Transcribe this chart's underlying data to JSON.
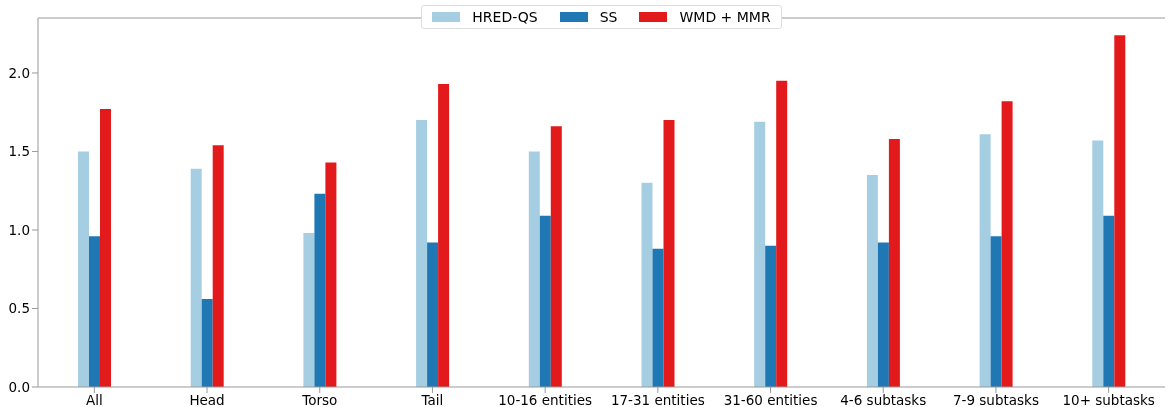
{
  "chart_data": {
    "type": "bar",
    "categories": [
      "All",
      "Head",
      "Torso",
      "Tail",
      "10-16 entities",
      "17-31 entities",
      "31-60 entities",
      "4-6 subtasks",
      "7-9 subtasks",
      "10+ subtasks"
    ],
    "series": [
      {
        "name": "HRED-QS",
        "color": "#a6cee3",
        "values": [
          1.5,
          1.39,
          0.98,
          1.7,
          1.5,
          1.3,
          1.69,
          1.35,
          1.61,
          1.57
        ]
      },
      {
        "name": "SS",
        "color": "#1f78b4",
        "values": [
          0.96,
          0.56,
          1.23,
          0.92,
          1.09,
          0.88,
          0.9,
          0.92,
          0.96,
          1.09
        ]
      },
      {
        "name": "WMD + MMR",
        "color": "#e31a1c",
        "values": [
          1.77,
          1.54,
          1.43,
          1.93,
          1.66,
          1.7,
          1.95,
          1.58,
          1.82,
          2.24
        ]
      }
    ],
    "ylim": [
      0,
      2.35
    ],
    "yticks": [
      {
        "value": 0,
        "label": "0.0"
      },
      0.5,
      {
        "value": 1,
        "label": "1.0"
      },
      1.5,
      {
        "value": 2,
        "label": "2.0"
      }
    ],
    "grid": false,
    "legend": "top"
  }
}
